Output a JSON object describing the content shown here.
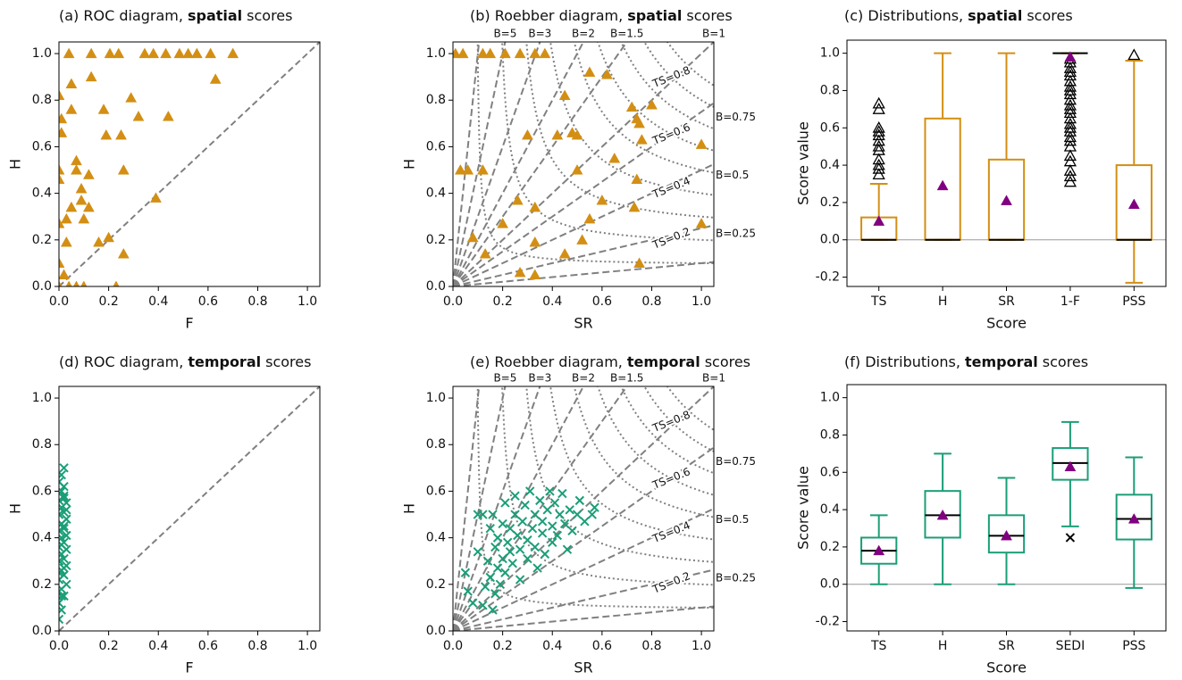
{
  "chart_data": [
    {
      "type": "scatter",
      "title": {
        "pre": "(a) ROC diagram,",
        "bold": "spatial",
        "post": "scores"
      },
      "xlabel": "F",
      "ylabel": "H",
      "marker": "triangle",
      "color": "#d38f14",
      "diagonal": true,
      "xlim": [
        0,
        1.05
      ],
      "ylim": [
        0,
        1.05
      ],
      "xticks": [
        {
          "value": 0,
          "label": "0.0"
        },
        0.2,
        0.4,
        0.6,
        0.8,
        {
          "value": 1,
          "label": "1.0"
        }
      ],
      "yticks": [
        {
          "value": 0,
          "label": "0.0"
        },
        0.2,
        0.4,
        0.6,
        0.8,
        {
          "value": 1,
          "label": "1.0"
        }
      ],
      "x": [
        0.04,
        0.13,
        0.205,
        0.24,
        0.345,
        0.38,
        0.43,
        0.485,
        0.52,
        0.555,
        0.61,
        0.7,
        0.05,
        0.13,
        0.05,
        0.0,
        0.01,
        0.01,
        0.29,
        0.32,
        0.44,
        0.18,
        0.19,
        0.25,
        0.63,
        0.07,
        0.07,
        0.12,
        0.09,
        0.0,
        0.0,
        0.05,
        0.09,
        0.12,
        0.1,
        0.03,
        0.16,
        0.2,
        0.26,
        0.39,
        0.26,
        0.0,
        0.03,
        0.0,
        0.02,
        0.04,
        0.1,
        0.23,
        0.07,
        0.0
      ],
      "values": [
        1.0,
        1.0,
        1.0,
        1.0,
        1.0,
        1.0,
        1.0,
        1.0,
        1.0,
        1.0,
        1.0,
        1.0,
        0.87,
        0.9,
        0.76,
        0.82,
        0.72,
        0.66,
        0.81,
        0.73,
        0.73,
        0.76,
        0.65,
        0.65,
        0.89,
        0.54,
        0.5,
        0.48,
        0.42,
        0.5,
        0.46,
        0.34,
        0.37,
        0.34,
        0.29,
        0.29,
        0.19,
        0.21,
        0.5,
        0.38,
        0.14,
        0.27,
        0.19,
        0.1,
        0.05,
        0.0,
        0.0,
        0.0,
        0.0,
        0.0
      ]
    },
    {
      "type": "roebber",
      "title": {
        "pre": "(b) Roebber diagram,",
        "bold": "spatial",
        "post": "scores"
      },
      "xlabel": "SR",
      "ylabel": "H",
      "marker": "triangle",
      "color": "#d38f14",
      "xlim": [
        0,
        1.05
      ],
      "ylim": [
        0,
        1.05
      ],
      "xticks": [
        {
          "value": 0,
          "label": "0.0"
        },
        0.2,
        0.4,
        0.6,
        0.8,
        {
          "value": 1,
          "label": "1.0"
        }
      ],
      "yticks": [
        {
          "value": 0,
          "label": "0.0"
        },
        0.2,
        0.4,
        0.6,
        0.8,
        {
          "value": 1,
          "label": "1.0"
        }
      ],
      "bias": [
        {
          "value": 0.1,
          "label": null
        },
        {
          "value": 0.25,
          "label": "B=0.25"
        },
        {
          "value": 0.5,
          "label": "B=0.5"
        },
        {
          "value": 0.75,
          "label": "B=0.75"
        },
        {
          "value": 1,
          "label": "B=1"
        },
        {
          "value": 1.5,
          "label": "B=1.5"
        },
        {
          "value": 2,
          "label": "B=2"
        },
        {
          "value": 3,
          "label": "B=3"
        },
        {
          "value": 5,
          "label": "B=5"
        },
        {
          "value": 10,
          "label": null
        }
      ],
      "ts": [
        {
          "value": 0.1,
          "label": null
        },
        {
          "value": 0.2,
          "label": "TS=0.2"
        },
        {
          "value": 0.3,
          "label": null
        },
        {
          "value": 0.4,
          "label": "TS=0.4"
        },
        {
          "value": 0.5,
          "label": null
        },
        {
          "value": 0.6,
          "label": "TS=0.6"
        },
        {
          "value": 0.7,
          "label": null
        },
        {
          "value": 0.8,
          "label": "TS=0.8"
        },
        {
          "value": 0.9,
          "label": null
        }
      ],
      "x": [
        0.01,
        0.04,
        0.12,
        0.15,
        0.21,
        0.27,
        0.33,
        0.37,
        0.55,
        0.45,
        0.72,
        0.74,
        0.75,
        0.8,
        0.3,
        0.42,
        0.5,
        0.48,
        0.03,
        0.06,
        0.12,
        0.26,
        0.33,
        0.5,
        0.65,
        0.74,
        0.76,
        1.0,
        1.0,
        0.6,
        0.55,
        0.73,
        0.33,
        0.2,
        0.13,
        0.08,
        0.52,
        0.45,
        0.27,
        0.33,
        0.75,
        0.62
      ],
      "values": [
        1.0,
        1.0,
        1.0,
        1.0,
        1.0,
        1.0,
        1.0,
        1.0,
        0.92,
        0.82,
        0.77,
        0.72,
        0.7,
        0.78,
        0.65,
        0.65,
        0.65,
        0.66,
        0.5,
        0.5,
        0.5,
        0.37,
        0.34,
        0.5,
        0.55,
        0.46,
        0.63,
        0.61,
        0.27,
        0.37,
        0.29,
        0.34,
        0.19,
        0.27,
        0.14,
        0.21,
        0.2,
        0.14,
        0.06,
        0.05,
        0.1,
        0.91
      ]
    },
    {
      "type": "box",
      "title": {
        "pre": "(c) Distributions,",
        "bold": "spatial",
        "post": "scores"
      },
      "xlabel": "Score",
      "ylabel": "Score value",
      "color": "#d38f14",
      "mean_color": "#800080",
      "flier_marker": "triangle",
      "zero_line": true,
      "ylim": [
        -0.25,
        1.07
      ],
      "yticks": [
        -0.2,
        {
          "value": 0,
          "label": "0.0"
        },
        0.2,
        0.4,
        0.6,
        0.8,
        {
          "value": 1,
          "label": "1.0"
        }
      ],
      "categories": [
        "TS",
        "H",
        "SR",
        "1-F",
        "PSS"
      ],
      "stats": [
        {
          "low": 0,
          "q1": 0,
          "median": 0,
          "q3": 0.12,
          "high": 0.3,
          "mean": 0.1,
          "fliers": [
            0.35,
            0.38,
            0.4,
            0.43,
            0.48,
            0.5,
            0.53,
            0.56,
            0.58,
            0.6,
            0.7,
            0.73
          ]
        },
        {
          "low": 0,
          "q1": 0,
          "median": 0,
          "q3": 0.65,
          "high": 1.0,
          "mean": 0.29,
          "fliers": []
        },
        {
          "low": 0,
          "q1": 0,
          "median": 0,
          "q3": 0.43,
          "high": 1.0,
          "mean": 0.21,
          "fliers": []
        },
        {
          "low": 1.0,
          "q1": 1.0,
          "median": 1.0,
          "q3": 1.0,
          "high": 1.0,
          "mean": 0.98,
          "fliers": [
            0.31,
            0.34,
            0.37,
            0.42,
            0.45,
            0.5,
            0.53,
            0.55,
            0.58,
            0.6,
            0.62,
            0.65,
            0.68,
            0.7,
            0.72,
            0.75,
            0.78,
            0.8,
            0.82,
            0.85,
            0.88,
            0.9,
            0.92,
            0.95,
            0.97
          ]
        },
        {
          "low": -0.23,
          "q1": 0,
          "median": 0,
          "q3": 0.4,
          "high": 0.96,
          "mean": 0.19,
          "fliers": [
            0.99
          ]
        }
      ]
    },
    {
      "type": "scatter",
      "title": {
        "pre": "(d) ROC diagram,",
        "bold": "temporal",
        "post": "scores"
      },
      "xlabel": "F",
      "ylabel": "H",
      "marker": "x",
      "color": "#1b9e77",
      "diagonal": true,
      "xlim": [
        0,
        1.05
      ],
      "ylim": [
        0,
        1.05
      ],
      "xticks": [
        {
          "value": 0,
          "label": "0.0"
        },
        0.2,
        0.4,
        0.6,
        0.8,
        {
          "value": 1,
          "label": "1.0"
        }
      ],
      "yticks": [
        {
          "value": 0,
          "label": "0.0"
        },
        0.2,
        0.4,
        0.6,
        0.8,
        {
          "value": 1,
          "label": "1.0"
        }
      ],
      "x": [
        0.0,
        0.01,
        0.0,
        0.02,
        0.01,
        0.03,
        0.0,
        0.02,
        0.01,
        0.03,
        0.0,
        0.02,
        0.01,
        0.03,
        0.0,
        0.02,
        0.01,
        0.03,
        0.0,
        0.02,
        0.01,
        0.03,
        0.0,
        0.02,
        0.01,
        0.03,
        0.0,
        0.02,
        0.01,
        0.02,
        0.0,
        0.01,
        0.02,
        0.02,
        0.01,
        0.02,
        0.03,
        0.0,
        0.01,
        0.02
      ],
      "values": [
        0.05,
        0.09,
        0.12,
        0.15,
        0.18,
        0.2,
        0.22,
        0.24,
        0.26,
        0.28,
        0.3,
        0.31,
        0.33,
        0.35,
        0.36,
        0.38,
        0.4,
        0.41,
        0.43,
        0.44,
        0.46,
        0.48,
        0.5,
        0.51,
        0.53,
        0.55,
        0.56,
        0.58,
        0.6,
        0.62,
        0.64,
        0.67,
        0.7,
        0.45,
        0.37,
        0.27,
        0.52,
        0.25,
        0.15,
        0.57
      ]
    },
    {
      "type": "roebber",
      "title": {
        "pre": "(e) Roebber diagram,",
        "bold": "temporal",
        "post": "scores"
      },
      "xlabel": "SR",
      "ylabel": "H",
      "marker": "x",
      "color": "#1b9e77",
      "xlim": [
        0,
        1.05
      ],
      "ylim": [
        0,
        1.05
      ],
      "xticks": [
        {
          "value": 0,
          "label": "0.0"
        },
        0.2,
        0.4,
        0.6,
        0.8,
        {
          "value": 1,
          "label": "1.0"
        }
      ],
      "yticks": [
        {
          "value": 0,
          "label": "0.0"
        },
        0.2,
        0.4,
        0.6,
        0.8,
        {
          "value": 1,
          "label": "1.0"
        }
      ],
      "bias": [
        {
          "value": 0.1,
          "label": null
        },
        {
          "value": 0.25,
          "label": "B=0.25"
        },
        {
          "value": 0.5,
          "label": "B=0.5"
        },
        {
          "value": 0.75,
          "label": "B=0.75"
        },
        {
          "value": 1,
          "label": "B=1"
        },
        {
          "value": 1.5,
          "label": "B=1.5"
        },
        {
          "value": 2,
          "label": "B=2"
        },
        {
          "value": 3,
          "label": "B=3"
        },
        {
          "value": 5,
          "label": "B=5"
        },
        {
          "value": 10,
          "label": null
        }
      ],
      "ts": [
        {
          "value": 0.1,
          "label": null
        },
        {
          "value": 0.2,
          "label": "TS=0.2"
        },
        {
          "value": 0.3,
          "label": null
        },
        {
          "value": 0.4,
          "label": "TS=0.4"
        },
        {
          "value": 0.5,
          "label": null
        },
        {
          "value": 0.6,
          "label": "TS=0.6"
        },
        {
          "value": 0.7,
          "label": null
        },
        {
          "value": 0.8,
          "label": "TS=0.8"
        },
        {
          "value": 0.9,
          "label": null
        }
      ],
      "x": [
        0.05,
        0.06,
        0.08,
        0.1,
        0.1,
        0.12,
        0.13,
        0.14,
        0.15,
        0.15,
        0.16,
        0.17,
        0.17,
        0.18,
        0.18,
        0.19,
        0.2,
        0.2,
        0.21,
        0.21,
        0.22,
        0.23,
        0.23,
        0.24,
        0.25,
        0.25,
        0.26,
        0.27,
        0.27,
        0.28,
        0.29,
        0.3,
        0.3,
        0.31,
        0.32,
        0.33,
        0.33,
        0.34,
        0.35,
        0.36,
        0.36,
        0.37,
        0.38,
        0.39,
        0.4,
        0.4,
        0.41,
        0.42,
        0.43,
        0.44,
        0.45,
        0.46,
        0.47,
        0.48,
        0.5,
        0.51,
        0.53,
        0.56,
        0.57,
        0.16,
        0.12
      ],
      "values": [
        0.25,
        0.17,
        0.12,
        0.34,
        0.5,
        0.5,
        0.19,
        0.3,
        0.44,
        0.23,
        0.5,
        0.16,
        0.36,
        0.4,
        0.27,
        0.2,
        0.46,
        0.31,
        0.25,
        0.55,
        0.38,
        0.34,
        0.44,
        0.29,
        0.5,
        0.58,
        0.41,
        0.35,
        0.22,
        0.47,
        0.54,
        0.39,
        0.31,
        0.6,
        0.44,
        0.5,
        0.36,
        0.27,
        0.56,
        0.42,
        0.47,
        0.33,
        0.52,
        0.6,
        0.45,
        0.38,
        0.55,
        0.41,
        0.5,
        0.59,
        0.46,
        0.35,
        0.52,
        0.43,
        0.5,
        0.56,
        0.47,
        0.5,
        0.53,
        0.09,
        0.11
      ]
    },
    {
      "type": "box",
      "title": {
        "pre": "(f) Distributions,",
        "bold": "temporal",
        "post": "scores"
      },
      "xlabel": "Score",
      "ylabel": "Score value",
      "color": "#1b9e77",
      "mean_color": "#800080",
      "flier_marker": "x",
      "zero_line": true,
      "ylim": [
        -0.25,
        1.07
      ],
      "yticks": [
        -0.2,
        {
          "value": 0,
          "label": "0.0"
        },
        0.2,
        0.4,
        0.6,
        0.8,
        {
          "value": 1,
          "label": "1.0"
        }
      ],
      "categories": [
        "TS",
        "H",
        "SR",
        "SEDI",
        "PSS"
      ],
      "stats": [
        {
          "low": 0,
          "q1": 0.11,
          "median": 0.18,
          "q3": 0.25,
          "high": 0.37,
          "mean": 0.18,
          "fliers": []
        },
        {
          "low": 0,
          "q1": 0.25,
          "median": 0.37,
          "q3": 0.5,
          "high": 0.7,
          "mean": 0.37,
          "fliers": []
        },
        {
          "low": 0,
          "q1": 0.17,
          "median": 0.26,
          "q3": 0.37,
          "high": 0.57,
          "mean": 0.26,
          "fliers": []
        },
        {
          "low": 0.31,
          "q1": 0.56,
          "median": 0.65,
          "q3": 0.73,
          "high": 0.87,
          "mean": 0.63,
          "fliers": [
            0.25
          ]
        },
        {
          "low": -0.02,
          "q1": 0.24,
          "median": 0.35,
          "q3": 0.48,
          "high": 0.68,
          "mean": 0.35,
          "fliers": []
        }
      ]
    }
  ]
}
